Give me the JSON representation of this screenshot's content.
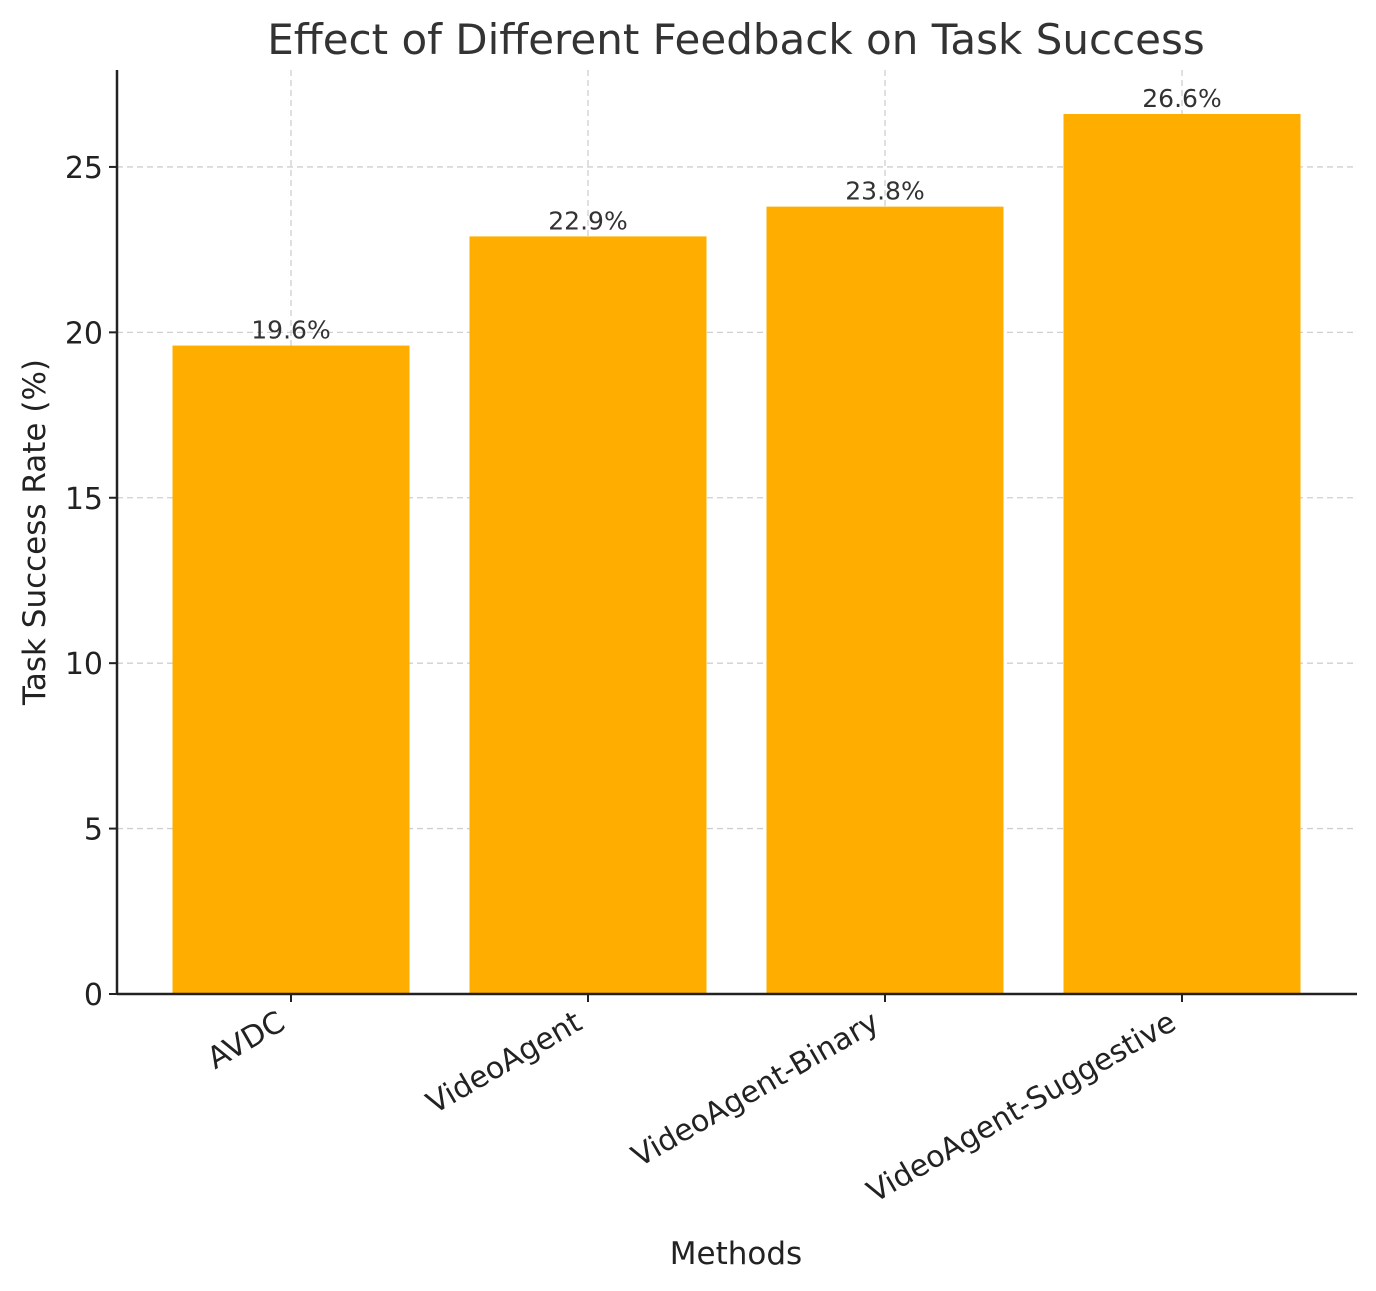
{
  "chart_data": {
    "type": "bar",
    "title": "Effect of Different Feedback on Task Success",
    "xlabel": "Methods",
    "ylabel": "Task Success Rate (%)",
    "categories": [
      "AVDC",
      "VideoAgent",
      "VideoAgent-Binary",
      "VideoAgent-Suggestive"
    ],
    "values": [
      19.6,
      22.9,
      23.8,
      26.6
    ],
    "value_labels": [
      "19.6%",
      "22.9%",
      "23.8%",
      "26.6%"
    ],
    "yticks": [
      0,
      5,
      10,
      15,
      20,
      25
    ],
    "ylim": [
      0,
      27.93
    ],
    "grid": true,
    "bar_color": "#FFAE00"
  }
}
